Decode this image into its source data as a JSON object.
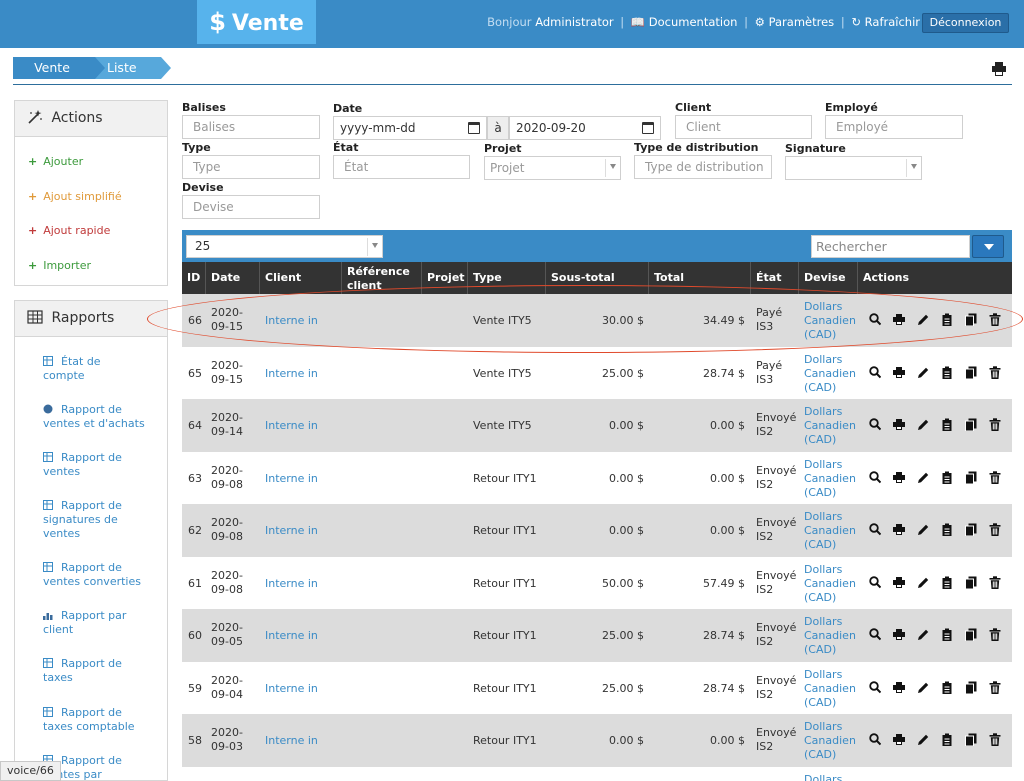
{
  "header": {
    "brand": "Vente",
    "greeting": "Bonjour",
    "user": "Administrator",
    "documentation": "Documentation",
    "settings": "Paramètres",
    "refresh": "Rafraîchir",
    "logout": "Déconnexion"
  },
  "breadcrumb": [
    "Vente",
    "Liste"
  ],
  "actions": {
    "title": "Actions",
    "items": [
      {
        "label": "Ajouter",
        "color": "#3c9a3c"
      },
      {
        "label": "Ajout simplifié",
        "color": "#e09a3a"
      },
      {
        "label": "Ajout rapide",
        "color": "#c03a3a"
      },
      {
        "label": "Importer",
        "color": "#3c9a3c"
      }
    ]
  },
  "reports": {
    "title": "Rapports",
    "items": [
      {
        "line1": "État de",
        "line2": "compte",
        "icon": "table-icon"
      },
      {
        "line1": "Rapport de",
        "line2": "ventes et d'achats",
        "icon": "globe-icon"
      },
      {
        "line1": "Rapport de",
        "line2": "ventes",
        "icon": "table-icon"
      },
      {
        "line1": "Rapport de",
        "line2": "signatures de",
        "line3": "ventes",
        "icon": "table-icon"
      },
      {
        "line1": "Rapport de",
        "line2": "ventes converties",
        "icon": "table-icon"
      },
      {
        "line1": "Rapport par",
        "line2": "client",
        "icon": "bar-chart-icon"
      },
      {
        "line1": "Rapport de",
        "line2": "taxes",
        "icon": "table-icon"
      },
      {
        "line1": "Rapport de",
        "line2": "taxes comptable",
        "icon": "table-icon"
      },
      {
        "line1": "Rapport de",
        "line2": "ventes par",
        "icon": "table-icon"
      }
    ]
  },
  "filters": {
    "balises": {
      "label": "Balises",
      "placeholder": "Balises"
    },
    "date": {
      "label": "Date",
      "from": "yyyy-mm-dd",
      "sep": "à",
      "to": "2020-09-20"
    },
    "client": {
      "label": "Client",
      "placeholder": "Client"
    },
    "employe": {
      "label": "Employé",
      "placeholder": "Employé"
    },
    "type": {
      "label": "Type",
      "placeholder": "Type"
    },
    "etat": {
      "label": "État",
      "placeholder": "État"
    },
    "projet": {
      "label": "Projet",
      "placeholder": "Projet"
    },
    "distribution": {
      "label": "Type de distribution",
      "placeholder": "Type de distribution"
    },
    "signature": {
      "label": "Signature",
      "placeholder": ""
    },
    "devise": {
      "label": "Devise",
      "placeholder": "Devise"
    }
  },
  "table": {
    "page_size": "25",
    "search_placeholder": "Rechercher",
    "columns": [
      "ID",
      "Date",
      "Client",
      "Référence client",
      "Projet",
      "Type",
      "Sous-total",
      "Total",
      "État",
      "Devise",
      "Actions"
    ],
    "rows": [
      {
        "id": "66",
        "date1": "2020-",
        "date2": "09-15",
        "client": "Interne in",
        "type": "Vente ITY5",
        "subtotal": "30.00 $",
        "total": "34.49 $",
        "state1": "Payé",
        "state2": "IS3",
        "cur1": "Dollars",
        "cur2": "Canadien",
        "cur3": "(CAD)"
      },
      {
        "id": "65",
        "date1": "2020-",
        "date2": "09-15",
        "client": "Interne in",
        "type": "Vente ITY5",
        "subtotal": "25.00 $",
        "total": "28.74 $",
        "state1": "Payé",
        "state2": "IS3",
        "cur1": "Dollars",
        "cur2": "Canadien",
        "cur3": "(CAD)"
      },
      {
        "id": "64",
        "date1": "2020-",
        "date2": "09-14",
        "client": "Interne in",
        "type": "Vente ITY5",
        "subtotal": "0.00 $",
        "total": "0.00 $",
        "state1": "Envoyé",
        "state2": "IS2",
        "cur1": "Dollars",
        "cur2": "Canadien",
        "cur3": "(CAD)"
      },
      {
        "id": "63",
        "date1": "2020-",
        "date2": "09-08",
        "client": "Interne in",
        "type": "Retour ITY1",
        "subtotal": "0.00 $",
        "total": "0.00 $",
        "state1": "Envoyé",
        "state2": "IS2",
        "cur1": "Dollars",
        "cur2": "Canadien",
        "cur3": "(CAD)"
      },
      {
        "id": "62",
        "date1": "2020-",
        "date2": "09-08",
        "client": "Interne in",
        "type": "Retour ITY1",
        "subtotal": "0.00 $",
        "total": "0.00 $",
        "state1": "Envoyé",
        "state2": "IS2",
        "cur1": "Dollars",
        "cur2": "Canadien",
        "cur3": "(CAD)"
      },
      {
        "id": "61",
        "date1": "2020-",
        "date2": "09-08",
        "client": "Interne in",
        "type": "Retour ITY1",
        "subtotal": "50.00 $",
        "total": "57.49 $",
        "state1": "Envoyé",
        "state2": "IS2",
        "cur1": "Dollars",
        "cur2": "Canadien",
        "cur3": "(CAD)"
      },
      {
        "id": "60",
        "date1": "2020-",
        "date2": "09-05",
        "client": "Interne in",
        "type": "Retour ITY1",
        "subtotal": "25.00 $",
        "total": "28.74 $",
        "state1": "Envoyé",
        "state2": "IS2",
        "cur1": "Dollars",
        "cur2": "Canadien",
        "cur3": "(CAD)"
      },
      {
        "id": "59",
        "date1": "2020-",
        "date2": "09-04",
        "client": "Interne in",
        "type": "Retour ITY1",
        "subtotal": "25.00 $",
        "total": "28.74 $",
        "state1": "Envoyé",
        "state2": "IS2",
        "cur1": "Dollars",
        "cur2": "Canadien",
        "cur3": "(CAD)"
      },
      {
        "id": "58",
        "date1": "2020-",
        "date2": "09-03",
        "client": "Interne in",
        "type": "Retour ITY1",
        "subtotal": "0.00 $",
        "total": "0.00 $",
        "state1": "Envoyé",
        "state2": "IS2",
        "cur1": "Dollars",
        "cur2": "Canadien",
        "cur3": "(CAD)"
      },
      {
        "id": "",
        "date1": "",
        "date2": "",
        "client": "",
        "type": "",
        "subtotal": "",
        "total": "",
        "state1": "",
        "state2": "",
        "cur1": "Dollars",
        "cur2": "",
        "cur3": ""
      }
    ]
  },
  "status_bar": "voice/66",
  "colors": {
    "header": "#3a8bc6",
    "brand": "#57b3ec",
    "link": "#3a8bc6",
    "highlight": "#e04a2c"
  }
}
